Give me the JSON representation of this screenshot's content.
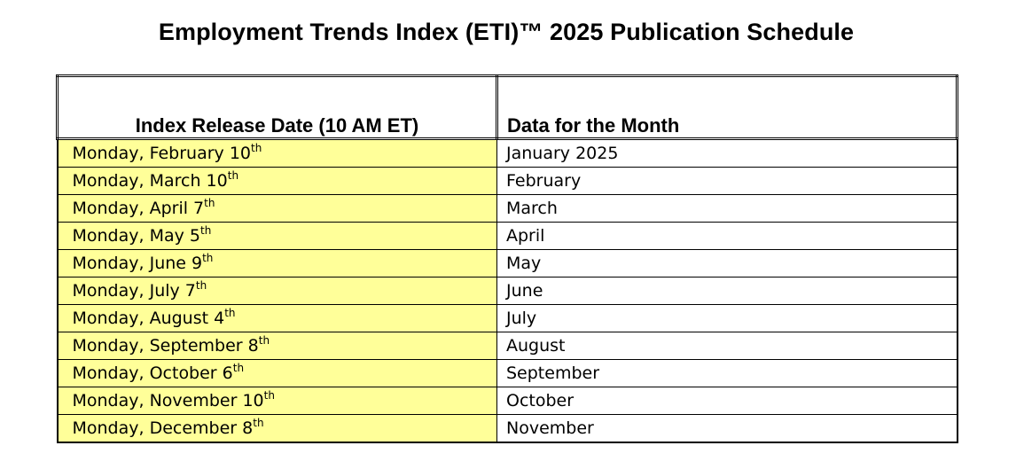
{
  "title": "Employment Trends Index (ETI)™ 2025 Publication Schedule",
  "table": {
    "headers": [
      "Index Release Date (10 AM ET)",
      "Data for the Month"
    ],
    "rows": [
      {
        "date": "Monday, February 10",
        "suffix": "th",
        "month": "January 2025"
      },
      {
        "date": "Monday, March 10",
        "suffix": "th",
        "month": "February"
      },
      {
        "date": "Monday, April 7",
        "suffix": "th",
        "month": "March"
      },
      {
        "date": "Monday, May 5",
        "suffix": "th",
        "month": "April"
      },
      {
        "date": "Monday, June 9",
        "suffix": "th",
        "month": "May"
      },
      {
        "date": "Monday, July 7",
        "suffix": "th",
        "month": "June"
      },
      {
        "date": "Monday, August 4",
        "suffix": "th",
        "month": "July"
      },
      {
        "date": "Monday, September 8",
        "suffix": "th",
        "month": "August"
      },
      {
        "date": "Monday, October 6",
        "suffix": "th",
        "month": "September"
      },
      {
        "date": "Monday, November 10",
        "suffix": "th",
        "month": "October"
      },
      {
        "date": "Monday, December 8",
        "suffix": "th",
        "month": "November"
      }
    ]
  },
  "colors": {
    "date_cell_background": "#ffff99",
    "border": "#000000"
  }
}
